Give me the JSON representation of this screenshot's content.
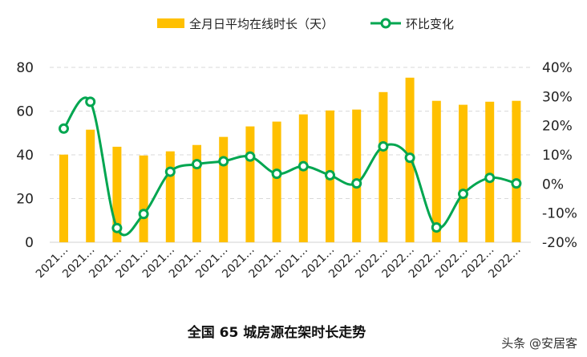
{
  "chart_data": {
    "type": "bar+line",
    "title": "全国 65 城房源在架时长走势",
    "categories": [
      "2021…",
      "2021…",
      "2021…",
      "2021…",
      "2021…",
      "2021…",
      "2021…",
      "2021…",
      "2021…",
      "2021…",
      "2021…",
      "2022…",
      "2022…",
      "2022…",
      "2022…",
      "2022…",
      "2022…",
      "2022…"
    ],
    "series": [
      {
        "name": "全月日平均在线时长（天）",
        "type": "bar",
        "axis": "left",
        "color": "#FFC000",
        "values": [
          40.1,
          51.5,
          43.7,
          39.7,
          41.6,
          44.5,
          48.2,
          53.0,
          55.2,
          58.5,
          60.3,
          60.7,
          68.7,
          75.3,
          64.7,
          62.9,
          64.3,
          64.7
        ]
      },
      {
        "name": "环比变化",
        "type": "line",
        "axis": "right",
        "color": "#00A650",
        "unit": "%",
        "values": [
          19.0,
          28.2,
          -15.1,
          -10.3,
          4.2,
          6.8,
          7.8,
          9.4,
          3.5,
          6.1,
          3.0,
          0.2,
          12.9,
          9.0,
          -14.9,
          -3.4,
          2.1,
          0.2
        ]
      }
    ],
    "left_axis": {
      "ylim": [
        0,
        80
      ],
      "ticks": [
        "0",
        "20",
        "40",
        "60",
        "80"
      ]
    },
    "right_axis": {
      "ylim": [
        -20,
        40
      ],
      "ticks": [
        "-20%",
        "-10%",
        "0%",
        "10%",
        "20%",
        "30%",
        "40%"
      ]
    },
    "grid": true,
    "legend": "top"
  },
  "watermark": "头条 @安居客"
}
